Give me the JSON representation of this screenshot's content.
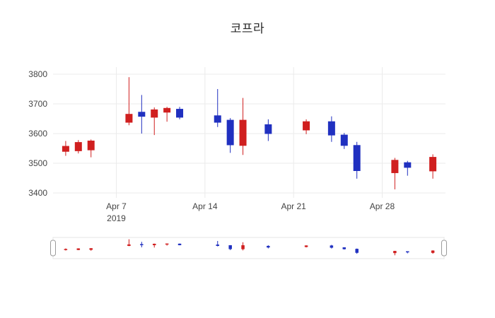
{
  "title": "코프라",
  "chart_data": {
    "type": "candlestick",
    "title": "코프라",
    "increasing_color": "#d01f1f",
    "decreasing_color": "#2030c0",
    "grid": true,
    "legend": "none",
    "rangeslider": true,
    "ylim": [
      3400,
      3800
    ],
    "yticks": [
      3800,
      3700,
      3600,
      3500,
      3400
    ],
    "xticks": [
      {
        "date": "2019-04-07",
        "label": "Apr 7",
        "sublabel": "2019"
      },
      {
        "date": "2019-04-14",
        "label": "Apr 14",
        "sublabel": ""
      },
      {
        "date": "2019-04-21",
        "label": "Apr 21",
        "sublabel": ""
      },
      {
        "date": "2019-04-28",
        "label": "Apr 28",
        "sublabel": ""
      }
    ],
    "candles": [
      {
        "date": "2019-04-03",
        "open": 3540,
        "high": 3575,
        "low": 3525,
        "close": 3557
      },
      {
        "date": "2019-04-04",
        "open": 3542,
        "high": 3578,
        "low": 3533,
        "close": 3570
      },
      {
        "date": "2019-04-05",
        "open": 3545,
        "high": 3580,
        "low": 3520,
        "close": 3575
      },
      {
        "date": "2019-04-08",
        "open": 3638,
        "high": 3790,
        "low": 3628,
        "close": 3665
      },
      {
        "date": "2019-04-09",
        "open": 3672,
        "high": 3730,
        "low": 3600,
        "close": 3658
      },
      {
        "date": "2019-04-10",
        "open": 3655,
        "high": 3688,
        "low": 3595,
        "close": 3680
      },
      {
        "date": "2019-04-11",
        "open": 3672,
        "high": 3690,
        "low": 3640,
        "close": 3685
      },
      {
        "date": "2019-04-12",
        "open": 3682,
        "high": 3690,
        "low": 3648,
        "close": 3655
      },
      {
        "date": "2019-04-15",
        "open": 3660,
        "high": 3750,
        "low": 3622,
        "close": 3638
      },
      {
        "date": "2019-04-16",
        "open": 3645,
        "high": 3652,
        "low": 3535,
        "close": 3562
      },
      {
        "date": "2019-04-17",
        "open": 3560,
        "high": 3720,
        "low": 3528,
        "close": 3645
      },
      {
        "date": "2019-04-19",
        "open": 3630,
        "high": 3648,
        "low": 3575,
        "close": 3600
      },
      {
        "date": "2019-04-22",
        "open": 3612,
        "high": 3648,
        "low": 3598,
        "close": 3640
      },
      {
        "date": "2019-04-24",
        "open": 3640,
        "high": 3658,
        "low": 3572,
        "close": 3595
      },
      {
        "date": "2019-04-25",
        "open": 3595,
        "high": 3602,
        "low": 3548,
        "close": 3560
      },
      {
        "date": "2019-04-26",
        "open": 3560,
        "high": 3572,
        "low": 3448,
        "close": 3475
      },
      {
        "date": "2019-04-29",
        "open": 3468,
        "high": 3518,
        "low": 3412,
        "close": 3510
      },
      {
        "date": "2019-04-30",
        "open": 3502,
        "high": 3508,
        "low": 3458,
        "close": 3486
      },
      {
        "date": "2019-05-02",
        "open": 3474,
        "high": 3530,
        "low": 3448,
        "close": 3520
      }
    ]
  }
}
